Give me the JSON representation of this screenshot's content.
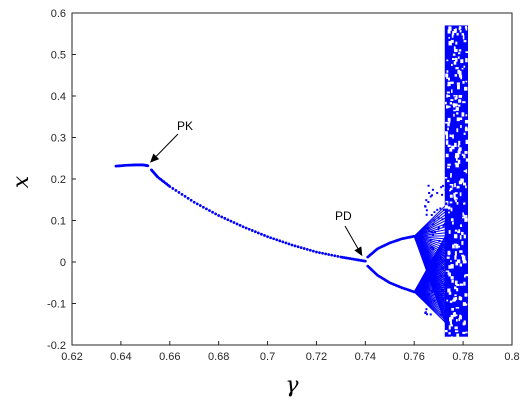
{
  "chart_data": {
    "type": "scatter",
    "xlabel": "γ",
    "ylabel": "x",
    "xlim": [
      0.62,
      0.8
    ],
    "ylim": [
      -0.2,
      0.6
    ],
    "x_ticks": [
      "0.62",
      "0.64",
      "0.66",
      "0.68",
      "0.7",
      "0.72",
      "0.74",
      "0.76",
      "0.78",
      "0.8"
    ],
    "y_ticks": [
      "-0.2",
      "-0.1",
      "0",
      "0.1",
      "0.2",
      "0.3",
      "0.4",
      "0.5",
      "0.6"
    ],
    "grid": false,
    "marker_color": "#0000ff",
    "series": [
      {
        "points": [
          [
            0.638,
            0.231
          ],
          [
            0.642,
            0.233
          ],
          [
            0.646,
            0.234
          ],
          [
            0.649,
            0.234
          ],
          [
            0.651,
            0.232
          ],
          [
            0.6525,
            0.222
          ],
          [
            0.655,
            0.205
          ],
          [
            0.66,
            0.182
          ],
          [
            0.67,
            0.144
          ],
          [
            0.68,
            0.112
          ],
          [
            0.69,
            0.085
          ],
          [
            0.7,
            0.061
          ],
          [
            0.71,
            0.041
          ],
          [
            0.72,
            0.024
          ],
          [
            0.73,
            0.012
          ],
          [
            0.736,
            0.006
          ],
          [
            0.74,
            0.002
          ],
          [
            0.741,
            0.012
          ],
          [
            0.745,
            0.032
          ],
          [
            0.75,
            0.046
          ],
          [
            0.755,
            0.056
          ],
          [
            0.76,
            0.062
          ],
          [
            0.741,
            -0.01
          ],
          [
            0.745,
            -0.032
          ],
          [
            0.75,
            -0.05
          ],
          [
            0.755,
            -0.062
          ],
          [
            0.76,
            -0.072
          ]
        ]
      }
    ],
    "annotations": [
      {
        "text": "PK",
        "x": 0.6515,
        "y": 0.232
      },
      {
        "text": "PD",
        "x": 0.74,
        "y": 0.002
      }
    ]
  }
}
